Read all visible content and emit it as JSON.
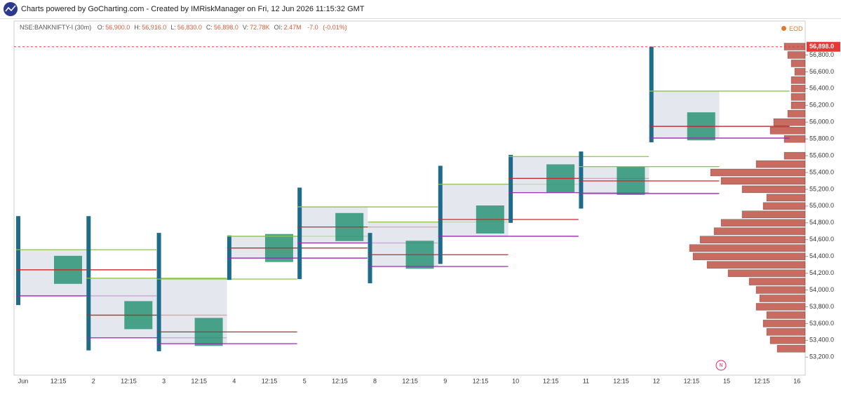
{
  "header": {
    "title": "Charts powered by GoCharting.com - Created by IMRiskManager on Fri, 12 Jun 2026 11:15:32 GMT"
  },
  "chart_data": {
    "type": "market-profile",
    "symbol": "NSE:BANKNIFTY-I (30m)",
    "ohlc": [
      {
        "label": "O:",
        "value": "56,900.0"
      },
      {
        "label": "H:",
        "value": "56,916.0"
      },
      {
        "label": "L:",
        "value": "56,830.0"
      },
      {
        "label": "C:",
        "value": "56,898.0"
      },
      {
        "label": "V:",
        "value": "72.78K"
      },
      {
        "label": "OI:",
        "value": "2.47M"
      }
    ],
    "change": "-7.0",
    "change_pct": "(-0.01%)",
    "eod_label": "EOD",
    "news_marker": "N",
    "categories": [
      "Jun",
      "12:15",
      "2",
      "12:15",
      "3",
      "12:15",
      "4",
      "12:15",
      "5",
      "12:15",
      "8",
      "12:15",
      "9",
      "12:15",
      "10",
      "12:15",
      "11",
      "12:15",
      "12",
      "12:15",
      "15",
      "12:15",
      "16"
    ],
    "ylim": [
      52985,
      57205
    ],
    "yticks": [
      {
        "value": 53200,
        "label": "53,200.0"
      },
      {
        "value": 53400,
        "label": "53,400.0"
      },
      {
        "value": 53600,
        "label": "53,600.0"
      },
      {
        "value": 53800,
        "label": "53,800.0"
      },
      {
        "value": 54000,
        "label": "54,000.0"
      },
      {
        "value": 54200,
        "label": "54,200.0"
      },
      {
        "value": 54400,
        "label": "54,400.0"
      },
      {
        "value": 54600,
        "label": "54,600.0"
      },
      {
        "value": 54800,
        "label": "54,800.0"
      },
      {
        "value": 55000,
        "label": "55,000.0"
      },
      {
        "value": 55200,
        "label": "55,200.0"
      },
      {
        "value": 55400,
        "label": "55,400.0"
      },
      {
        "value": 55600,
        "label": "55,600.0"
      },
      {
        "value": 55800,
        "label": "55,800.0"
      },
      {
        "value": 56000,
        "label": "56,000.0"
      },
      {
        "value": 56200,
        "label": "56,200.0"
      },
      {
        "value": 56400,
        "label": "56,400.0"
      },
      {
        "value": 56600,
        "label": "56,600.0"
      },
      {
        "value": 56800,
        "label": "56,800.0"
      }
    ],
    "last_price": {
      "value": 56898,
      "label": "56,898.0"
    },
    "days": [
      {
        "high": 54880,
        "low": 53820,
        "vah": 54480,
        "poc": 54240,
        "val": 53930
      },
      {
        "high": 54880,
        "low": 53280,
        "vah": 54140,
        "poc": 53700,
        "val": 53430
      },
      {
        "high": 54680,
        "low": 53270,
        "vah": 54130,
        "poc": 53500,
        "val": 53360
      },
      {
        "high": 54650,
        "low": 54120,
        "vah": 54640,
        "poc": 54500,
        "val": 54380
      },
      {
        "high": 55220,
        "low": 54130,
        "vah": 54990,
        "poc": 54750,
        "val": 54560
      },
      {
        "high": 54680,
        "low": 54080,
        "vah": 54810,
        "poc": 54420,
        "val": 54280
      },
      {
        "high": 55480,
        "low": 54310,
        "vah": 55260,
        "poc": 54840,
        "val": 54640
      },
      {
        "high": 55610,
        "low": 54800,
        "vah": 55590,
        "poc": 55330,
        "val": 55160
      },
      {
        "high": 55650,
        "low": 54970,
        "vah": 55470,
        "poc": 55300,
        "val": 55150
      },
      {
        "high": 56900,
        "low": 55760,
        "vah": 56370,
        "poc": 55950,
        "val": 55810
      }
    ],
    "composite_profile": {
      "color": "#b5392c",
      "prices": [
        53300,
        53400,
        53500,
        53600,
        53700,
        53800,
        53900,
        54000,
        54100,
        54200,
        54300,
        54400,
        54500,
        54600,
        54700,
        54800,
        54900,
        55000,
        55100,
        55200,
        55300,
        55400,
        55500,
        55600,
        55800,
        55900,
        56000,
        56100,
        56200,
        56300,
        56400,
        56500,
        56600,
        56700,
        56800,
        56900
      ],
      "volumes": [
        40,
        50,
        55,
        60,
        55,
        70,
        65,
        70,
        80,
        110,
        140,
        160,
        165,
        150,
        130,
        120,
        90,
        60,
        55,
        90,
        120,
        135,
        70,
        30,
        30,
        50,
        45,
        25,
        20,
        20,
        20,
        20,
        15,
        20,
        25,
        30
      ]
    },
    "colors": {
      "vah": "#8bc34a",
      "poc": "#c62828",
      "val": "#9c27b0",
      "value_area": "#d9dde6",
      "profile": "#1e6b8a"
    }
  }
}
